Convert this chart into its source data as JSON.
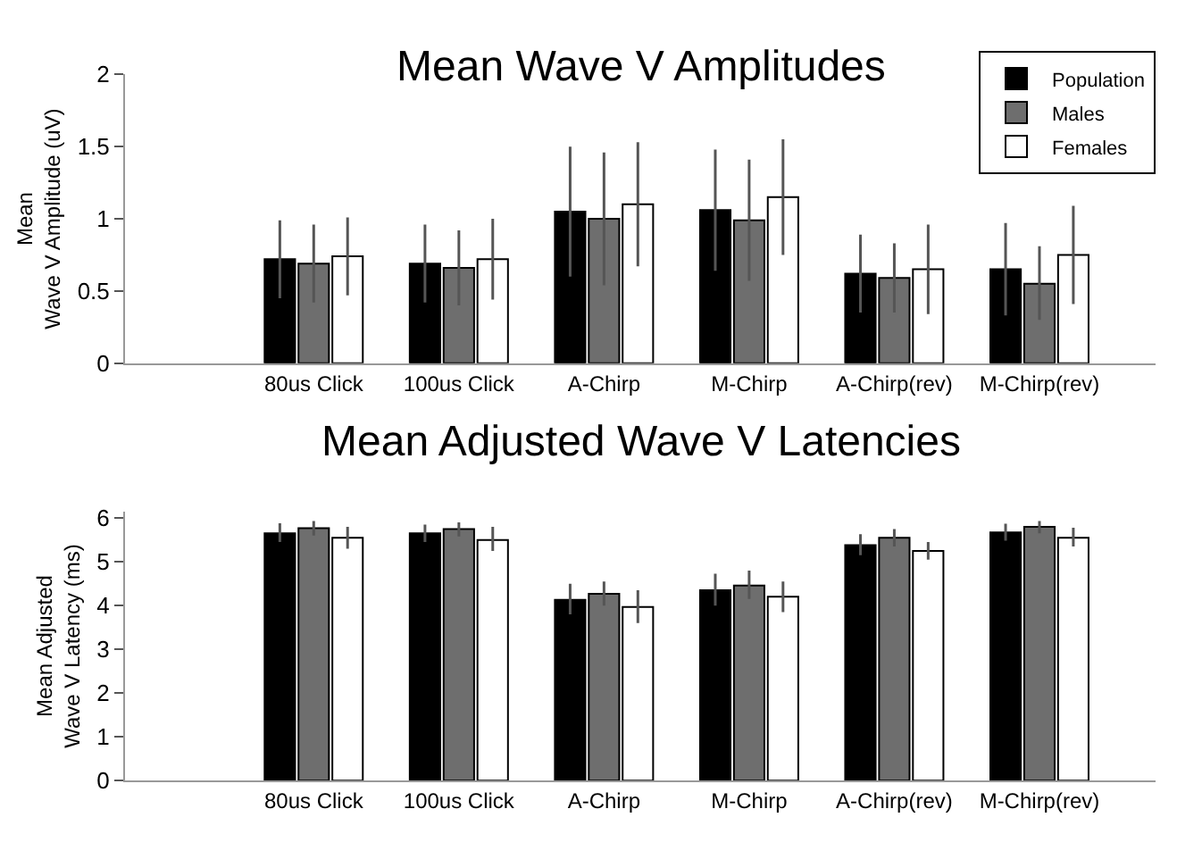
{
  "chart_data": [
    {
      "type": "bar",
      "title": "Mean Wave V Amplitudes",
      "ylabel": "Mean\nWave V Amplitude (uV)",
      "categories": [
        "80us Click",
        "100us Click",
        "A-Chirp",
        "M-Chirp",
        "A-Chirp(rev)",
        "M-Chirp(rev)"
      ],
      "ylim": [
        0,
        2
      ],
      "yticks": [
        0,
        0.5,
        1,
        1.5,
        2
      ],
      "legend": "top right",
      "series": [
        {
          "name": "Population",
          "color": "#000000",
          "values": [
            0.72,
            0.69,
            1.05,
            1.06,
            0.62,
            0.65
          ],
          "errors": [
            [
              0.45,
              0.99
            ],
            [
              0.42,
              0.96
            ],
            [
              0.6,
              1.5
            ],
            [
              0.64,
              1.48
            ],
            [
              0.35,
              0.89
            ],
            [
              0.33,
              0.97
            ]
          ]
        },
        {
          "name": "Males",
          "color": "#6e6e6e",
          "values": [
            0.69,
            0.66,
            1.0,
            0.99,
            0.59,
            0.55
          ],
          "errors": [
            [
              0.42,
              0.96
            ],
            [
              0.4,
              0.92
            ],
            [
              0.54,
              1.46
            ],
            [
              0.57,
              1.41
            ],
            [
              0.35,
              0.83
            ],
            [
              0.3,
              0.81
            ]
          ]
        },
        {
          "name": "Females",
          "color": "#ffffff",
          "values": [
            0.74,
            0.72,
            1.1,
            1.15,
            0.65,
            0.75
          ],
          "errors": [
            [
              0.47,
              1.01
            ],
            [
              0.44,
              1.0
            ],
            [
              0.67,
              1.53
            ],
            [
              0.75,
              1.55
            ],
            [
              0.34,
              0.96
            ],
            [
              0.41,
              1.09
            ]
          ]
        }
      ]
    },
    {
      "type": "bar",
      "title": "Mean Adjusted Wave V Latencies",
      "ylabel": "Mean Adjusted\nWave V Latency (ms)",
      "categories": [
        "80us Click",
        "100us Click",
        "A-Chirp",
        "M-Chirp",
        "A-Chirp(rev)",
        "M-Chirp(rev)"
      ],
      "ylim": [
        0,
        6.15
      ],
      "yticks": [
        0,
        1,
        2,
        3,
        4,
        5,
        6
      ],
      "series": [
        {
          "color": "#000000",
          "values": [
            5.65,
            5.65,
            4.13,
            4.35,
            5.38,
            5.67
          ],
          "errors": [
            [
              5.45,
              5.88
            ],
            [
              5.45,
              5.85
            ],
            [
              3.8,
              4.5
            ],
            [
              4.0,
              4.73
            ],
            [
              5.15,
              5.63
            ],
            [
              5.48,
              5.87
            ]
          ]
        },
        {
          "color": "#6e6e6e",
          "values": [
            5.77,
            5.75,
            4.27,
            4.46,
            5.55,
            5.8
          ],
          "errors": [
            [
              5.6,
              5.93
            ],
            [
              5.58,
              5.9
            ],
            [
              4.0,
              4.55
            ],
            [
              4.15,
              4.8
            ],
            [
              5.35,
              5.75
            ],
            [
              5.65,
              5.93
            ]
          ]
        },
        {
          "color": "#ffffff",
          "values": [
            5.55,
            5.5,
            3.97,
            4.2,
            5.25,
            5.55
          ],
          "errors": [
            [
              5.3,
              5.8
            ],
            [
              5.25,
              5.8
            ],
            [
              3.6,
              4.35
            ],
            [
              3.85,
              4.55
            ],
            [
              5.05,
              5.45
            ],
            [
              5.35,
              5.78
            ]
          ]
        }
      ]
    }
  ]
}
